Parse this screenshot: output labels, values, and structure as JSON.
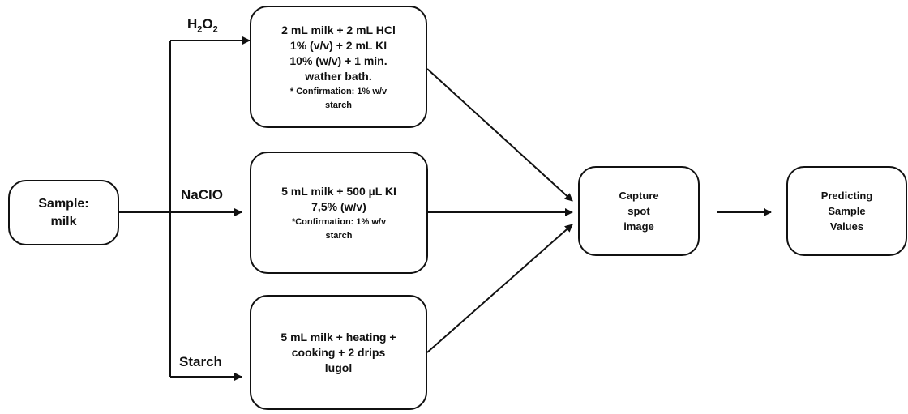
{
  "sample": {
    "line1": "Sample:",
    "line2": "milk"
  },
  "branches": {
    "h2o2": {
      "label_main": "H",
      "label_sub1": "2",
      "label_mid": "O",
      "label_sub2": "2"
    },
    "naclo": {
      "label": "NaClO"
    },
    "starch": {
      "label": "Starch"
    }
  },
  "procedures": {
    "h2o2": {
      "lines": [
        "2 mL milk + 2 mL HCl",
        "1% (v/v) + 2 mL KI",
        "10% (w/v) + 1 min.",
        "wather bath."
      ],
      "note": [
        "* Confirmation: 1% w/v",
        "starch"
      ]
    },
    "naclo": {
      "lines": [
        "5 mL milk + 500 µL KI",
        "7,5% (w/v)"
      ],
      "note": [
        "*Confirmation: 1% w/v",
        "starch"
      ]
    },
    "starch": {
      "lines": [
        "5 mL milk + heating +",
        "cooking + 2 drips",
        "lugol"
      ]
    }
  },
  "capture": {
    "lines": [
      "Capture",
      "spot",
      "image"
    ]
  },
  "predict": {
    "lines": [
      "Predicting",
      "Sample",
      "Values"
    ]
  }
}
